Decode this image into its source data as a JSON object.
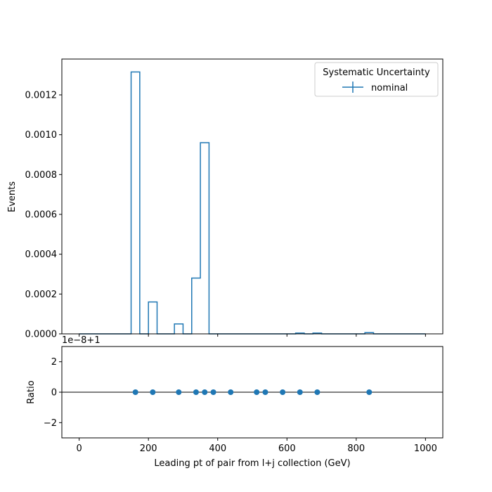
{
  "chart_data": [
    {
      "type": "step",
      "ylabel": "Events",
      "xlim": [
        -50,
        1050
      ],
      "ylim": [
        0,
        0.00138
      ],
      "y_ticks": [
        0,
        0.0002,
        0.0004,
        0.0006,
        0.0008,
        0.001,
        0.0012
      ],
      "y_tick_labels": [
        "0.0000",
        "0.0002",
        "0.0004",
        "0.0006",
        "0.0008",
        "0.0010",
        "0.0012"
      ],
      "x_ticks": [
        0,
        200,
        400,
        600,
        800,
        1000
      ],
      "legend": {
        "title": "Systematic Uncertainty",
        "entries": [
          "nominal"
        ],
        "placement": "top-right"
      },
      "series": [
        {
          "name": "nominal",
          "color": "#1f77b4",
          "bin_edges": [
            0,
            25,
            50,
            75,
            100,
            125,
            150,
            175,
            200,
            225,
            250,
            275,
            300,
            325,
            350,
            375,
            400,
            425,
            450,
            475,
            500,
            525,
            550,
            575,
            600,
            625,
            650,
            675,
            700,
            725,
            750,
            775,
            800,
            825,
            850,
            875,
            900,
            925,
            950,
            975,
            1000
          ],
          "values": [
            0,
            0,
            0,
            0,
            0,
            0,
            0.001315,
            0,
            0.00016,
            0,
            0,
            5e-05,
            0,
            0.00028,
            0.00096,
            0,
            0,
            0,
            0,
            0,
            0,
            0,
            0,
            0,
            0,
            4e-06,
            0,
            4e-06,
            0,
            0,
            0,
            0,
            0,
            6e-06,
            0,
            0,
            0,
            0,
            0,
            0
          ]
        }
      ]
    },
    {
      "type": "scatter",
      "xlabel": "Leading pt of pair from l+j collection (GeV)",
      "ylabel": "Ratio",
      "offset_label": "1e−8+1",
      "xlim": [
        -50,
        1050
      ],
      "ylim": [
        -3,
        3
      ],
      "y_ticks": [
        -2,
        0,
        2
      ],
      "y_tick_labels": [
        "−2",
        "0",
        "2"
      ],
      "x_ticks": [
        0,
        200,
        400,
        600,
        800,
        1000
      ],
      "x_tick_labels": [
        "0",
        "200",
        "400",
        "600",
        "800",
        "1000"
      ],
      "reference_line": 0,
      "series": [
        {
          "name": "nominal",
          "color": "#1f77b4",
          "x": [
            162.5,
            212.5,
            287.5,
            337.5,
            362.5,
            387.5,
            437.5,
            512.5,
            537.5,
            587.5,
            637.5,
            687.5,
            837.5
          ],
          "y": [
            0,
            0,
            0,
            0,
            0,
            0,
            0,
            0,
            0,
            0,
            0,
            0,
            0
          ]
        }
      ]
    }
  ]
}
